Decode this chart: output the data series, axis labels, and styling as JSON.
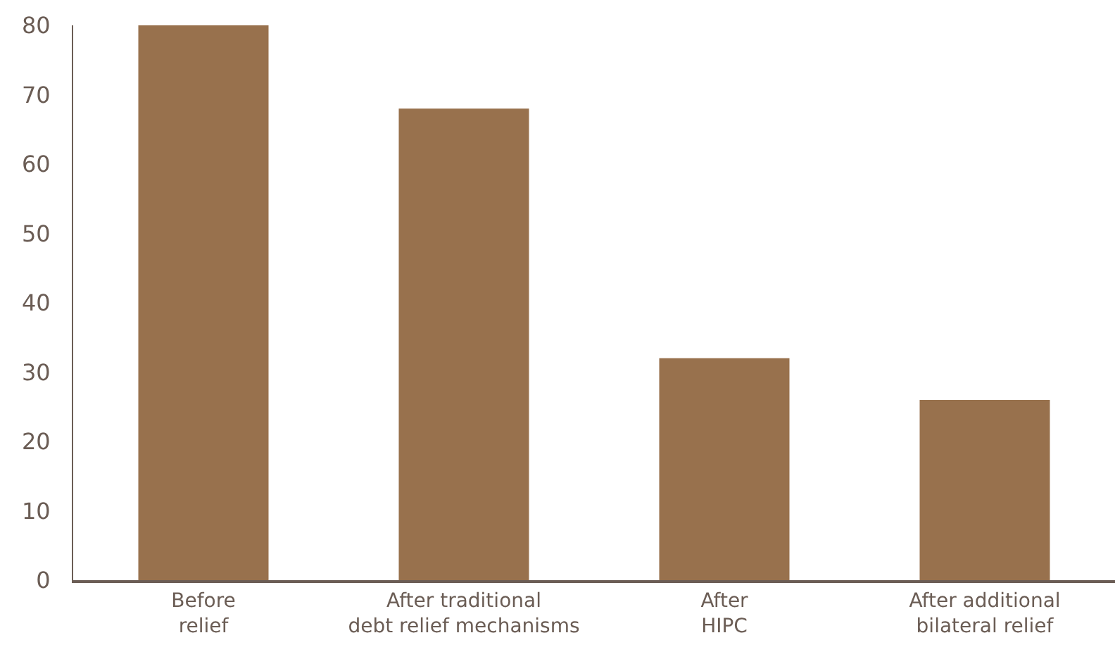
{
  "chart_data": {
    "type": "bar",
    "categories": [
      "Before\nrelief",
      "After traditional\ndebt relief mechanisms",
      "After\nHIPC",
      "After additional\nbilateral relief"
    ],
    "values": [
      80,
      68,
      32,
      26
    ],
    "color": "#98714d",
    "ylim": [
      0,
      80
    ],
    "yticks": [
      0,
      10,
      20,
      30,
      40,
      50,
      60,
      70,
      80
    ]
  }
}
